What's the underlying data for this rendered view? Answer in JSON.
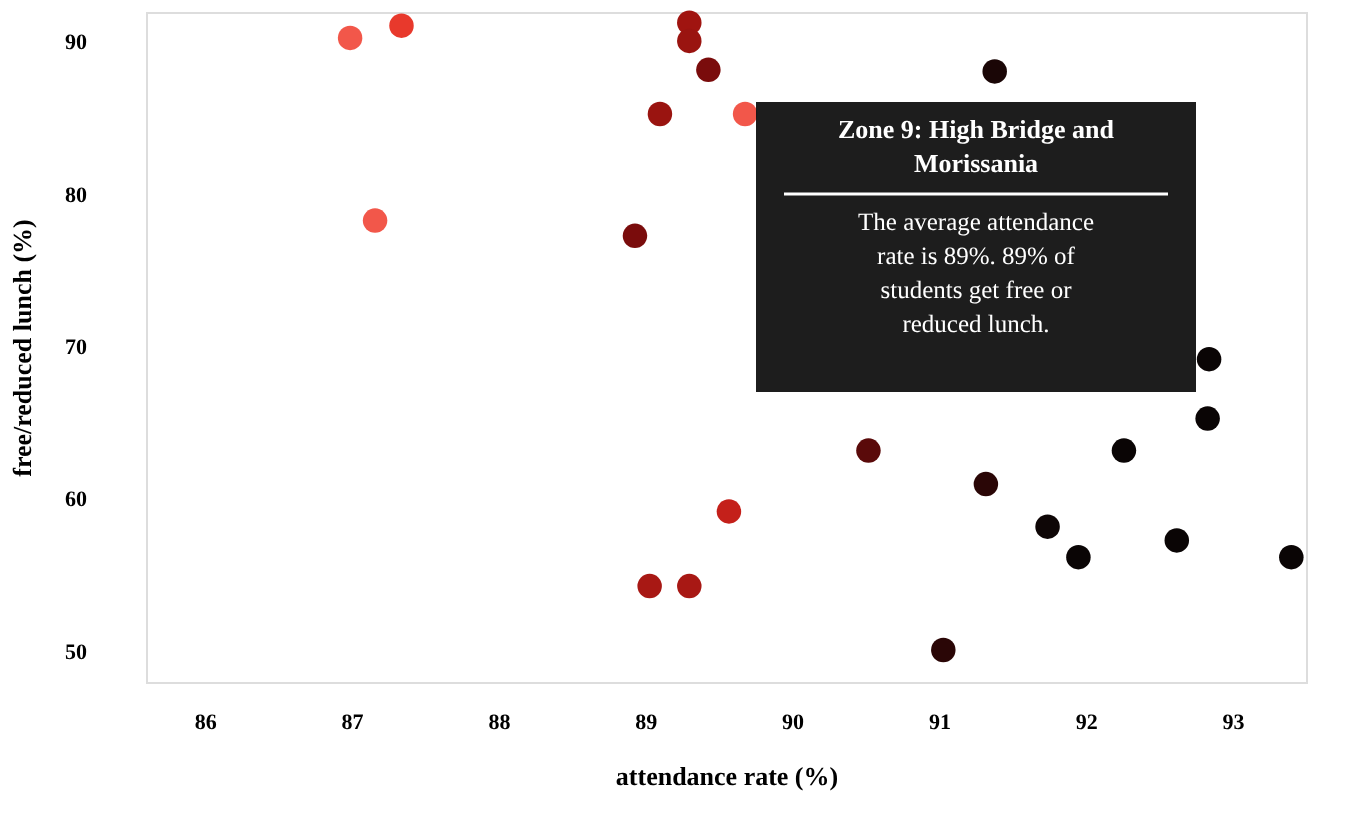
{
  "chart_data": {
    "type": "scatter",
    "xlabel": "attendance rate (%)",
    "ylabel": "free/reduced lunch (%)",
    "x": [
      86.99,
      87.34,
      87.16,
      88.93,
      89.1,
      89.3,
      89.3,
      89.43,
      89.68,
      90.52,
      89.57,
      89.03,
      89.3,
      91.38,
      91.03,
      91.32,
      91.74,
      91.95,
      92.26,
      92.62,
      92.83,
      92.84,
      93.4
    ],
    "values": [
      90.3,
      91.1,
      78.3,
      77.3,
      85.3,
      91.3,
      90.1,
      88.2,
      85.3,
      63.2,
      59.2,
      54.3,
      54.3,
      88.1,
      50.1,
      61.0,
      58.2,
      56.2,
      63.2,
      57.3,
      65.3,
      69.2,
      56.2
    ],
    "colors": [
      "#f2574a",
      "#e8392c",
      "#f2574a",
      "#7a0c0c",
      "#9a1410",
      "#a01410",
      "#9a1410",
      "#7a0c0c",
      "#f2574a",
      "#5a0a0a",
      "#c4201a",
      "#a81814",
      "#a81814",
      "#1a0606",
      "#2a0606",
      "#2a0606",
      "#0e0606",
      "#0a0505",
      "#0a0505",
      "#0a0505",
      "#0a0505",
      "#0a0505",
      "#0a0505"
    ],
    "xlim": [
      85.6,
      93.5
    ],
    "ylim": [
      48,
      92
    ],
    "xticks": [
      86,
      87,
      88,
      89,
      90,
      91,
      92,
      93
    ],
    "yticks": [
      50,
      60,
      70,
      80,
      90
    ],
    "grid": false,
    "marker": "circle",
    "annotations": [
      "Zone 9: High Bridge and Morissania",
      "The average attendance rate is 89%. 89% of students get free or reduced lunch."
    ]
  }
}
